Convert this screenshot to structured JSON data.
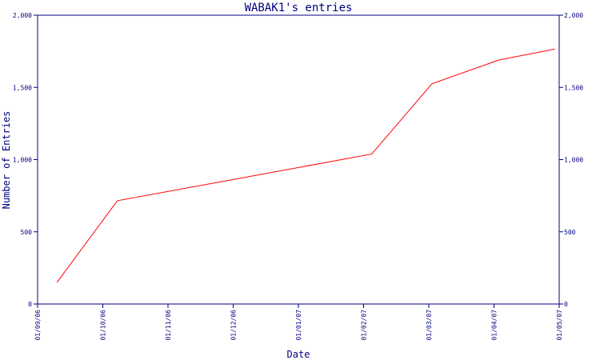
{
  "chart_data": {
    "type": "line",
    "title": "WABAK1's entries",
    "xlabel": "Date",
    "ylabel": "Number of Entries",
    "x_ticks": [
      "01/09/06",
      "01/10/06",
      "01/11/06",
      "01/12/06",
      "01/01/07",
      "01/02/07",
      "01/03/07",
      "01/04/07",
      "01/05/07"
    ],
    "y_ticks": [
      "0",
      "500",
      "1,000",
      "1,500",
      "2,000"
    ],
    "ylim": [
      0,
      2000
    ],
    "xlim": [
      "2006-09-01",
      "2007-05-01"
    ],
    "grid": false,
    "legend": "none",
    "series": [
      {
        "color": "#ff0000",
        "points": [
          {
            "x": "2006-09-10",
            "y": 150
          },
          {
            "x": "2006-10-08",
            "y": 715
          },
          {
            "x": "2007-02-03",
            "y": 1038
          },
          {
            "x": "2007-03-03",
            "y": 1525
          },
          {
            "x": "2007-04-03",
            "y": 1690
          },
          {
            "x": "2007-04-29",
            "y": 1765
          }
        ]
      }
    ]
  },
  "colors": {
    "axis": "#000080",
    "text": "#000080",
    "line": "#ff0000",
    "background": "#ffffff"
  }
}
